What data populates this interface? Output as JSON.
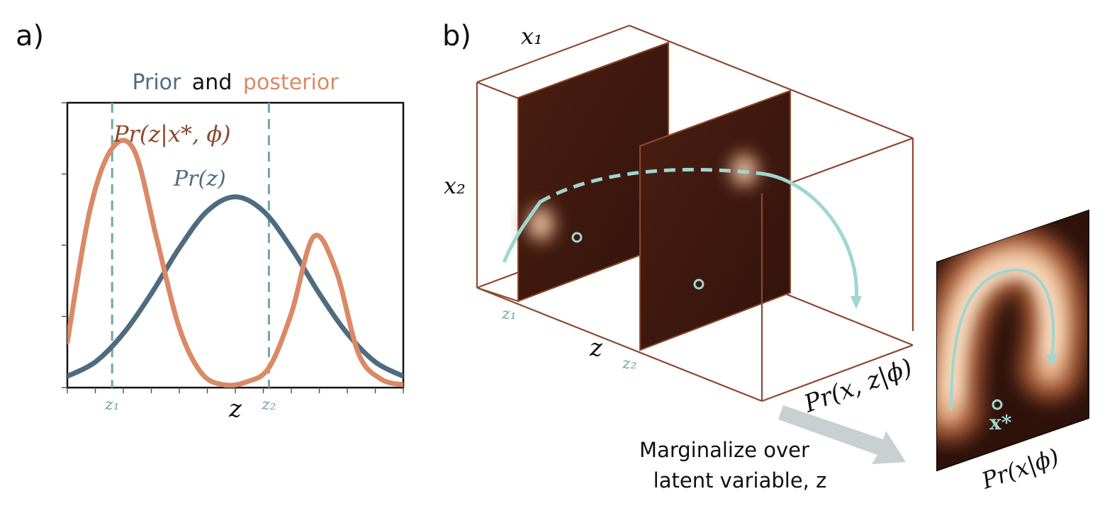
{
  "panel_a": {
    "label": "a)",
    "title": {
      "prior_word": "Prior",
      "and_word": "and",
      "posterior_word": "posterior"
    },
    "posterior_label": "Pr(z|x*, ϕ)",
    "prior_label": "Pr(z)",
    "xlabel": "z",
    "marker_z1": "z₁",
    "marker_z2": "z₂"
  },
  "panel_b": {
    "label": "b)",
    "axis_x1": "x₁",
    "axis_x2": "x₂",
    "axis_z": "z",
    "slice_z1": "z₁",
    "slice_z2": "z₂",
    "joint_label": "Pr(x, z|ϕ)",
    "marginal_label": "Pr(x|ϕ)",
    "xstar_label": "x*",
    "arrow_text_line1": "Marginalize over",
    "arrow_text_line2": "latent variable, z"
  },
  "colors": {
    "prior": "#4f6b80",
    "posterior": "#d98a66",
    "posterior_text": "#8a4a2e",
    "marker": "#6fa8a4",
    "box": "#8b4a2e",
    "slice_dark": "#3a160e",
    "path": "#9fd6d0",
    "arrow": "#c9d0d1"
  },
  "chart_data": {
    "type": "line",
    "title": "Prior and posterior",
    "xlabel": "z",
    "ylabel": "",
    "xlim": [
      -3,
      3
    ],
    "ylim": [
      0,
      1
    ],
    "markers": [
      {
        "name": "z₁",
        "x": -2.2
      },
      {
        "name": "z₂",
        "x": 0.6
      }
    ],
    "series": [
      {
        "name": "Pr(z)",
        "color": "#4f6b80",
        "x": [
          -3.0,
          -2.5,
          -2.0,
          -1.5,
          -1.0,
          -0.5,
          0.0,
          0.5,
          1.0,
          1.5,
          2.0,
          2.5,
          3.0
        ],
        "y": [
          0.04,
          0.09,
          0.19,
          0.33,
          0.49,
          0.62,
          0.67,
          0.62,
          0.49,
          0.33,
          0.19,
          0.09,
          0.04
        ]
      },
      {
        "name": "Pr(z|x*, ϕ)",
        "color": "#d98a66",
        "x": [
          -3.0,
          -2.6,
          -2.2,
          -1.8,
          -1.4,
          -1.0,
          -0.6,
          -0.2,
          0.2,
          0.6,
          1.0,
          1.4,
          1.8,
          2.2,
          2.6,
          3.0
        ],
        "y": [
          0.16,
          0.62,
          0.84,
          0.83,
          0.52,
          0.21,
          0.05,
          0.01,
          0.02,
          0.07,
          0.26,
          0.53,
          0.41,
          0.12,
          0.03,
          0.01
        ]
      }
    ]
  }
}
